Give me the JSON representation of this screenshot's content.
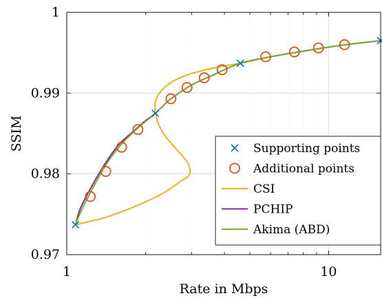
{
  "chart_data": {
    "type": "line",
    "title": "",
    "xlabel": "Rate in Mbps",
    "ylabel": "SSIM",
    "xscale": "log",
    "xlim": [
      1.0,
      15.8
    ],
    "ylim": [
      0.97,
      1.0
    ],
    "xticks": [
      {
        "value": 1,
        "label": "1"
      },
      {
        "value": 10,
        "label": "10"
      }
    ],
    "yticks": [
      {
        "value": 0.97,
        "label": "0.97"
      },
      {
        "value": 0.98,
        "label": "0.98"
      },
      {
        "value": 0.99,
        "label": "0.99"
      },
      {
        "value": 1.0,
        "label": "1"
      }
    ],
    "grid": true,
    "legend_position": "lower-right",
    "colors": {
      "supporting": "#0072BD",
      "additional": "#D95319",
      "csi": "#EDB120",
      "pchip": "#7E2F8E",
      "akima": "#77AC30"
    },
    "series": [
      {
        "name": "Supporting points",
        "kind": "marker-x",
        "color_key": "supporting",
        "points": [
          [
            1.08,
            0.9737
          ],
          [
            2.18,
            0.9875
          ],
          [
            4.6,
            0.9937
          ],
          [
            15.8,
            0.9965
          ]
        ]
      },
      {
        "name": "Additional points",
        "kind": "marker-circle",
        "color_key": "additional",
        "points": [
          [
            1.23,
            0.9772
          ],
          [
            1.41,
            0.9803
          ],
          [
            1.62,
            0.9833
          ],
          [
            1.87,
            0.9855
          ],
          [
            2.5,
            0.9893
          ],
          [
            2.88,
            0.9907
          ],
          [
            3.35,
            0.9919
          ],
          [
            3.92,
            0.9929
          ],
          [
            5.75,
            0.9945
          ],
          [
            7.4,
            0.9951
          ],
          [
            9.15,
            0.9956
          ],
          [
            11.5,
            0.996
          ]
        ]
      },
      {
        "name": "CSI",
        "kind": "line",
        "color_key": "csi",
        "points": [
          [
            1.08,
            0.9737
          ],
          [
            1.4,
            0.9746
          ],
          [
            1.8,
            0.9759
          ],
          [
            2.3,
            0.9775
          ],
          [
            2.7,
            0.979
          ],
          [
            2.95,
            0.98
          ],
          [
            2.88,
            0.9815
          ],
          [
            2.6,
            0.9832
          ],
          [
            2.32,
            0.9852
          ],
          [
            2.18,
            0.9875
          ],
          [
            2.2,
            0.9893
          ],
          [
            2.4,
            0.9909
          ],
          [
            2.8,
            0.9921
          ],
          [
            3.5,
            0.993
          ],
          [
            4.6,
            0.9937
          ],
          [
            6.0,
            0.9945
          ],
          [
            8.0,
            0.9952
          ],
          [
            11.0,
            0.9959
          ],
          [
            15.8,
            0.9965
          ]
        ]
      },
      {
        "name": "PCHIP",
        "kind": "line",
        "color_key": "pchip",
        "points": [
          [
            1.08,
            0.9737
          ],
          [
            1.12,
            0.9755
          ],
          [
            1.2,
            0.9775
          ],
          [
            1.32,
            0.9799
          ],
          [
            1.45,
            0.982
          ],
          [
            1.6,
            0.9838
          ],
          [
            1.8,
            0.9853
          ],
          [
            2.0,
            0.9866
          ],
          [
            2.18,
            0.9875
          ],
          [
            2.5,
            0.9893
          ],
          [
            3.0,
            0.991
          ],
          [
            3.6,
            0.9922
          ],
          [
            4.6,
            0.9937
          ],
          [
            6.0,
            0.9945
          ],
          [
            8.0,
            0.9952
          ],
          [
            11.0,
            0.9959
          ],
          [
            15.8,
            0.9965
          ]
        ]
      },
      {
        "name": "Akima (ABD)",
        "kind": "line",
        "color_key": "akima",
        "points": [
          [
            1.08,
            0.9737
          ],
          [
            1.12,
            0.975
          ],
          [
            1.2,
            0.977
          ],
          [
            1.32,
            0.9795
          ],
          [
            1.45,
            0.9817
          ],
          [
            1.6,
            0.9835
          ],
          [
            1.8,
            0.9852
          ],
          [
            2.0,
            0.9865
          ],
          [
            2.18,
            0.9875
          ],
          [
            2.5,
            0.9893
          ],
          [
            3.0,
            0.991
          ],
          [
            3.6,
            0.9922
          ],
          [
            4.6,
            0.9937
          ],
          [
            6.0,
            0.9945
          ],
          [
            8.0,
            0.9952
          ],
          [
            11.0,
            0.9959
          ],
          [
            15.8,
            0.9965
          ]
        ]
      }
    ]
  }
}
